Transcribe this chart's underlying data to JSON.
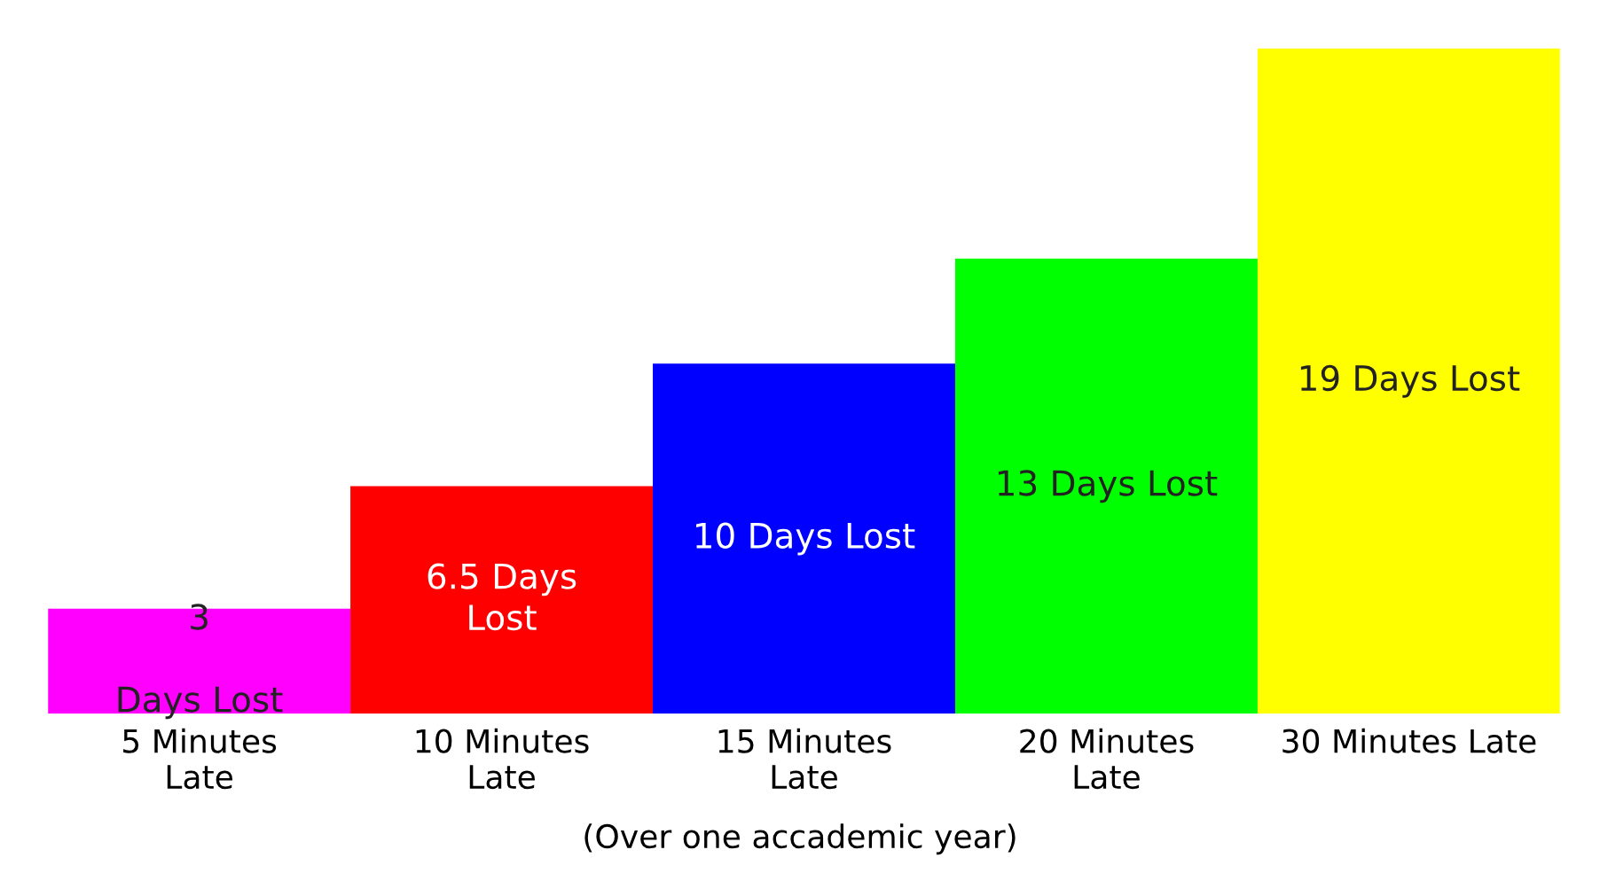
{
  "chart_data": {
    "type": "bar",
    "categories": [
      "5 Minutes\nLate",
      "10 Minutes\nLate",
      "15 Minutes\nLate",
      "20 Minutes\nLate",
      "30 Minutes Late"
    ],
    "values": [
      3,
      6.5,
      10,
      13,
      19
    ],
    "colors": [
      "#ff00ff",
      "#ff0000",
      "#0000ff",
      "#00ff00",
      "#ffff00"
    ],
    "value_labels": [
      "3\n\nDays Lost",
      "6.5 Days\nLost",
      "10 Days Lost",
      "13 Days Lost",
      "19 Days Lost"
    ],
    "annotations": [
      "(Over one accademic year)"
    ]
  }
}
